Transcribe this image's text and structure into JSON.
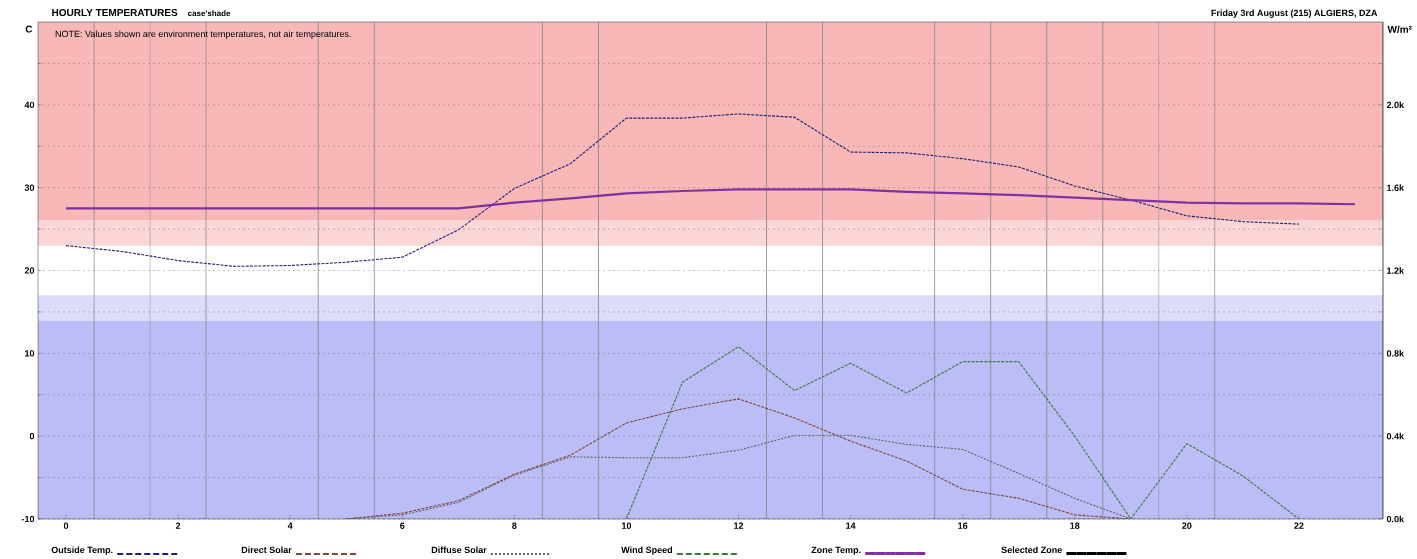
{
  "chart_data": {
    "type": "line",
    "title": "HOURLY TEMPERATURES",
    "subtitle": "case'shade",
    "ylabel": "C",
    "y2label": "W/m²",
    "annotations": [
      "NOTE:  Values shown are environment temperatures, not air temperatures.",
      "Friday 3rd August (215)   ALGIERS, DZA"
    ],
    "xlim": [
      -0.5,
      23.5
    ],
    "xticks": [
      0,
      2,
      4,
      6,
      8,
      10,
      12,
      14,
      16,
      18,
      20,
      22
    ],
    "ylim": [
      -10,
      50
    ],
    "yticks": [
      -10,
      {
        "value": -5,
        "label": null
      },
      0,
      {
        "value": 5,
        "label": null
      },
      10,
      {
        "value": 15,
        "label": null
      },
      20,
      {
        "value": 25,
        "label": null
      },
      30,
      {
        "value": 35,
        "label": null
      },
      40,
      {
        "value": 45,
        "label": null
      }
    ],
    "y2lim": [
      0,
      2400
    ],
    "y2ticks": [
      {
        "value": 0,
        "label": "0.0k"
      },
      {
        "value": 200,
        "label": null
      },
      {
        "value": 400,
        "label": "0.4k"
      },
      {
        "value": 600,
        "label": null
      },
      {
        "value": 800,
        "label": "0.8k"
      },
      {
        "value": 1000,
        "label": null
      },
      {
        "value": 1200,
        "label": "1.2k"
      },
      {
        "value": 1400,
        "label": null
      },
      {
        "value": 1600,
        "label": "1.6k"
      },
      {
        "value": 1800,
        "label": null
      },
      {
        "value": 2000,
        "label": "2.0k"
      },
      {
        "value": 2200,
        "label": null
      }
    ],
    "grid": "y",
    "legend": "bottom",
    "bands": [
      {
        "axis": "y",
        "from": -10,
        "to": 14,
        "color": "#bcbcf7"
      },
      {
        "axis": "y",
        "from": 14,
        "to": 17,
        "color": "#dcdcfa"
      },
      {
        "axis": "y",
        "from": 23,
        "to": 26,
        "color": "#fad6d6"
      },
      {
        "axis": "y",
        "from": 26,
        "to": 50,
        "color": "#f8b8b8"
      }
    ],
    "ref_lines": [
      {
        "axis": "x",
        "value": 0.5,
        "color": "#808080"
      },
      {
        "axis": "x",
        "value": 1.5,
        "color": "#808080"
      },
      {
        "axis": "x",
        "value": 2.5,
        "color": "#808080"
      },
      {
        "axis": "x",
        "value": 4.5,
        "color": "#808080"
      },
      {
        "axis": "x",
        "value": 5.5,
        "color": "#808080"
      },
      {
        "axis": "x",
        "value": 8.5,
        "color": "#808080"
      },
      {
        "axis": "x",
        "value": 9.5,
        "color": "#808080"
      },
      {
        "axis": "x",
        "value": 12.5,
        "color": "#808080"
      },
      {
        "axis": "x",
        "value": 13.5,
        "color": "#808080"
      },
      {
        "axis": "x",
        "value": 15.5,
        "color": "#808080"
      },
      {
        "axis": "x",
        "value": 16.5,
        "color": "#808080"
      },
      {
        "axis": "x",
        "value": 17.5,
        "color": "#808080"
      },
      {
        "axis": "x",
        "value": 18.5,
        "color": "#808080"
      },
      {
        "axis": "x",
        "value": 19.5,
        "color": "#808080"
      },
      {
        "axis": "x",
        "value": 20.5,
        "color": "#808080"
      }
    ],
    "series": [
      {
        "name": "Outside Temp.",
        "color": "#202070",
        "line_style": "dashed",
        "x": [
          0,
          1,
          2,
          3,
          4,
          5,
          6,
          7,
          8,
          9,
          10,
          11,
          12,
          13,
          14,
          15,
          16,
          17,
          18,
          19,
          20,
          21,
          22
        ],
        "values": [
          23.0,
          22.3,
          21.2,
          20.5,
          20.6,
          21.0,
          21.6,
          24.9,
          29.9,
          32.9,
          38.4,
          38.4,
          38.9,
          38.5,
          34.3,
          34.2,
          33.5,
          32.5,
          30.2,
          28.5,
          26.6,
          25.9,
          25.6
        ]
      },
      {
        "name": "Direct Solar",
        "color": "#7a4a3a",
        "line_style": "dashed",
        "axis": "y2",
        "x": [
          5,
          6,
          7,
          8,
          9,
          10,
          11,
          12,
          13,
          14,
          15,
          16,
          17,
          18,
          19
        ],
        "values": [
          0,
          28,
          88,
          216,
          308,
          464,
          532,
          580,
          488,
          376,
          280,
          144,
          100,
          20,
          0
        ]
      },
      {
        "name": "Diffuse Solar",
        "color": "#606060",
        "line_style": "dotted",
        "axis": "y2",
        "x": [
          5,
          6,
          7,
          8,
          9,
          10,
          11,
          12,
          13,
          14,
          15,
          16,
          17,
          18,
          19
        ],
        "values": [
          0,
          20,
          80,
          212,
          300,
          296,
          296,
          332,
          404,
          404,
          360,
          336,
          220,
          100,
          0
        ]
      },
      {
        "name": "Wind Speed",
        "color": "#3a7a3a",
        "line_style": "dashed",
        "axis": "y2",
        "x": [
          10,
          11,
          12,
          13,
          14,
          15,
          16,
          17,
          18,
          19,
          20,
          21,
          22
        ],
        "values": [
          0,
          660,
          832,
          620,
          752,
          608,
          760,
          760,
          400,
          0,
          364,
          208,
          0
        ]
      },
      {
        "name": "Zone Temp.",
        "color": "#8030a0",
        "line_style": "solid",
        "x": [
          0,
          1,
          2,
          3,
          4,
          5,
          6,
          7,
          8,
          9,
          10,
          11,
          12,
          13,
          14,
          15,
          16,
          17,
          18,
          19,
          20,
          21,
          22,
          23
        ],
        "values": [
          27.5,
          27.5,
          27.5,
          27.5,
          27.5,
          27.5,
          27.5,
          27.5,
          28.2,
          28.7,
          29.3,
          29.6,
          29.8,
          29.8,
          29.8,
          29.5,
          29.3,
          29.1,
          28.8,
          28.5,
          28.2,
          28.1,
          28.1,
          28.0
        ]
      },
      {
        "name": "Selected Zone",
        "color": "#000000",
        "line_style": "solid",
        "values": [
          null
        ]
      }
    ]
  }
}
